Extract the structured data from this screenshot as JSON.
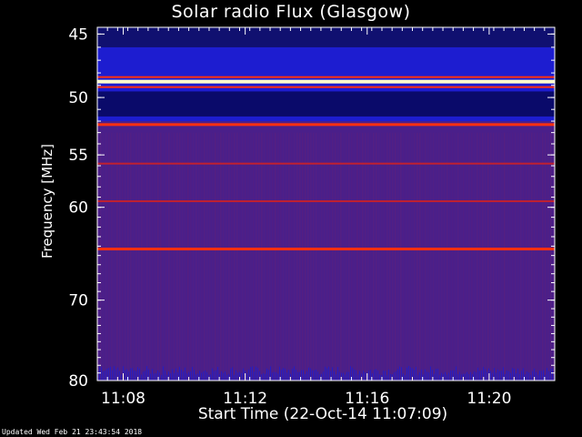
{
  "chart_data": {
    "type": "heatmap",
    "title": "Solar radio Flux (Glasgow)",
    "xlabel": "Start Time (22-Oct-14 11:07:09)",
    "ylabel": "Frequency [MHz]",
    "x_tick_labels": [
      "11:08",
      "11:12",
      "11:16",
      "11:20"
    ],
    "x_tick_minutes_from_start": [
      0.85,
      4.85,
      8.85,
      12.85
    ],
    "x_range_minutes": [
      0,
      15
    ],
    "y_tick_labels": [
      "45",
      "50",
      "55",
      "60",
      "70",
      "80"
    ],
    "y_ticks": [
      45,
      50,
      55,
      60,
      70,
      80
    ],
    "ylim": [
      80,
      44.5
    ],
    "y_scale": "log",
    "emission_bands_mhz": [
      {
        "freq": 48.7,
        "intensity": "very high"
      },
      {
        "freq": 52.3,
        "intensity": "high"
      },
      {
        "freq": 55.8,
        "intensity": "medium"
      },
      {
        "freq": 64.3,
        "intensity": "high"
      },
      {
        "freq": 59.4,
        "intensity": "low"
      }
    ],
    "colors": {
      "background": "#4a1f8a",
      "low": "#1d1dd0",
      "band": "#ff3010",
      "peak": "#ffffcc"
    }
  },
  "footer": "Updated Wed Feb 21 23:43:54 2018"
}
